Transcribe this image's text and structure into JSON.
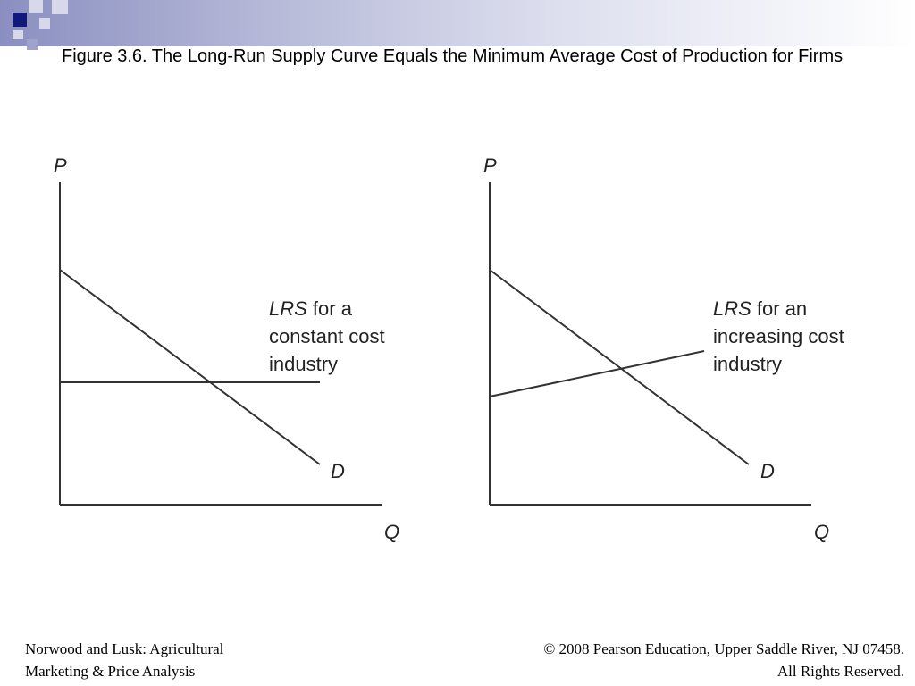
{
  "title": "Figure 3.6.  The Long-Run Supply Curve Equals the Minimum Average Cost of Production for Firms",
  "colors": {
    "accent_navy": "#101878",
    "header_band": "#8a8fc0"
  },
  "diagrams": [
    {
      "y_axis_label": "P",
      "x_axis_label": "Q",
      "lrs_label_prefix": "LRS",
      "lrs_label_line1_suffix": " for a",
      "lrs_label_line2": "constant cost",
      "lrs_label_line3": "industry",
      "demand_label": "D"
    },
    {
      "y_axis_label": "P",
      "x_axis_label": "Q",
      "lrs_label_prefix": "LRS",
      "lrs_label_line1_suffix": " for an",
      "lrs_label_line2": "increasing cost",
      "lrs_label_line3": "industry",
      "demand_label": "D"
    }
  ],
  "footer": {
    "left_line1": "Norwood and Lusk: Agricultural",
    "left_line2": "Marketing & Price Analysis",
    "right_line1": "© 2008 Pearson Education, Upper Saddle River, NJ 07458.",
    "right_line2": "All Rights Reserved."
  }
}
